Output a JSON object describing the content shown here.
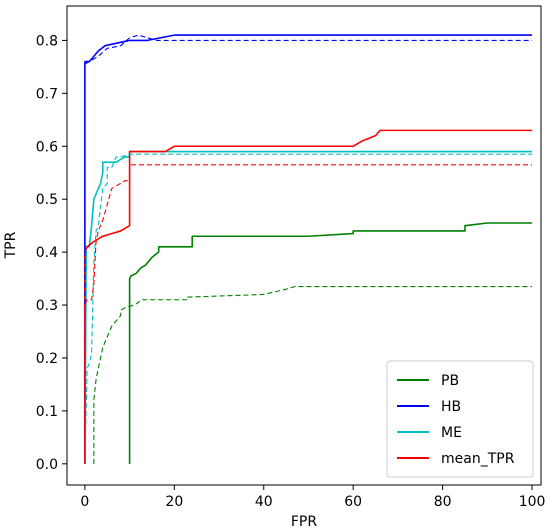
{
  "chart_data": {
    "type": "line",
    "xlabel": "FPR",
    "ylabel": "TPR",
    "xlim": [
      -4,
      102
    ],
    "ylim": [
      -0.04,
      0.865
    ],
    "xticks": [
      "0",
      "20",
      "40",
      "60",
      "80",
      "100"
    ],
    "yticks": [
      "0.0",
      "0.1",
      "0.2",
      "0.3",
      "0.4",
      "0.5",
      "0.6",
      "0.7",
      "0.8"
    ],
    "grid": false,
    "legend_position": "bottom-right",
    "series": [
      {
        "name": "PB",
        "color": "#008000",
        "style": "solid",
        "x": [
          10,
          10,
          10.3,
          11.5,
          12.5,
          13.5,
          14,
          15,
          16.5,
          16.5,
          24,
          24,
          50,
          60,
          60,
          85,
          85,
          90,
          100
        ],
        "y": [
          0,
          0.35,
          0.355,
          0.36,
          0.37,
          0.375,
          0.38,
          0.39,
          0.4,
          0.41,
          0.41,
          0.43,
          0.43,
          0.435,
          0.44,
          0.44,
          0.45,
          0.455,
          0.455
        ]
      },
      {
        "name": "HB",
        "color": "#0000ff",
        "style": "solid",
        "x": [
          0,
          0,
          1,
          2,
          3,
          4.5,
          10,
          14,
          17,
          20,
          100
        ],
        "y": [
          0,
          0.76,
          0.76,
          0.77,
          0.78,
          0.79,
          0.8,
          0.8,
          0.805,
          0.81,
          0.81
        ]
      },
      {
        "name": "ME",
        "color": "#00bfbf",
        "style": "solid",
        "x": [
          0,
          0.3,
          1,
          1.5,
          2,
          2.5,
          3,
          3.5,
          4,
          4,
          7,
          8,
          9,
          10,
          10,
          100
        ],
        "y": [
          0,
          0.41,
          0.41,
          0.45,
          0.5,
          0.51,
          0.52,
          0.53,
          0.55,
          0.57,
          0.57,
          0.575,
          0.58,
          0.58,
          0.59,
          0.59
        ]
      },
      {
        "name": "mean_TPR",
        "color": "#ff0000",
        "style": "solid",
        "x": [
          0,
          0,
          0.5,
          2,
          4,
          6,
          8,
          10,
          10,
          18,
          20,
          60,
          62,
          65,
          66,
          100
        ],
        "y": [
          0,
          0.4,
          0.41,
          0.42,
          0.43,
          0.435,
          0.44,
          0.45,
          0.59,
          0.59,
          0.6,
          0.6,
          0.61,
          0.62,
          0.63,
          0.63
        ]
      },
      {
        "name": "",
        "color": "#008000",
        "style": "dashed",
        "x": [
          2,
          2,
          2.5,
          3,
          4,
          5,
          6,
          8,
          8,
          9,
          11,
          12,
          12.5,
          23,
          23,
          40,
          45,
          47,
          100
        ],
        "y": [
          0,
          0.12,
          0.16,
          0.18,
          0.22,
          0.24,
          0.26,
          0.28,
          0.29,
          0.295,
          0.3,
          0.305,
          0.31,
          0.31,
          0.315,
          0.32,
          0.33,
          0.335,
          0.335
        ]
      },
      {
        "name": "",
        "color": "#0000ff",
        "style": "dashed",
        "x": [
          0,
          0,
          1,
          3,
          5,
          8,
          10,
          12,
          14,
          16,
          100
        ],
        "y": [
          0,
          0.755,
          0.76,
          0.77,
          0.785,
          0.79,
          0.805,
          0.81,
          0.805,
          0.8,
          0.8
        ]
      },
      {
        "name": "",
        "color": "#00bfbf",
        "style": "dashed",
        "x": [
          0,
          0.5,
          1,
          1.5,
          2,
          2.5,
          3,
          4,
          5,
          5,
          6,
          7,
          8,
          10,
          100
        ],
        "y": [
          0,
          0.18,
          0.19,
          0.21,
          0.38,
          0.44,
          0.45,
          0.52,
          0.53,
          0.56,
          0.56,
          0.58,
          0.58,
          0.585,
          0.585
        ]
      },
      {
        "name": "",
        "color": "#ff0000",
        "style": "dashed",
        "x": [
          0,
          0,
          0.5,
          1.5,
          2,
          2.5,
          3,
          4,
          5,
          6,
          7,
          8,
          9,
          10,
          10,
          100
        ],
        "y": [
          0,
          0.3,
          0.31,
          0.31,
          0.34,
          0.42,
          0.44,
          0.46,
          0.49,
          0.52,
          0.525,
          0.53,
          0.535,
          0.535,
          0.565,
          0.565
        ]
      }
    ]
  }
}
